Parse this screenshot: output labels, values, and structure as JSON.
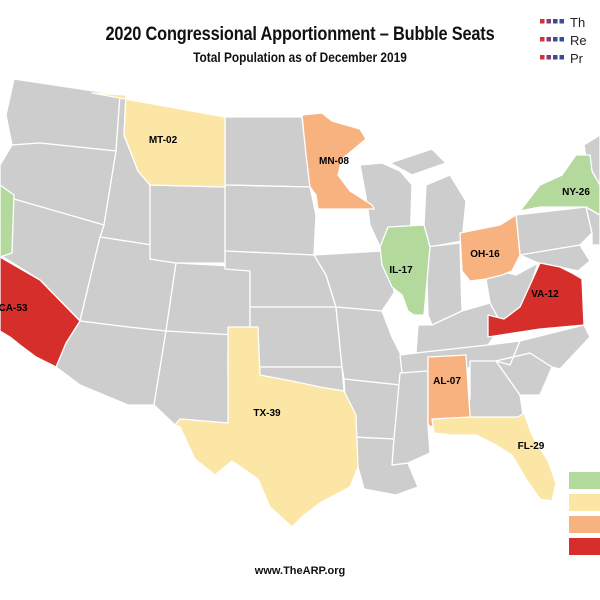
{
  "header": {
    "title": "2020 Congressional Apportionment – Bubble Seats",
    "subtitle": "Total Population as of December 2019"
  },
  "logo": {
    "lines": [
      "Th",
      "Re",
      "Pr"
    ],
    "dot_colors": [
      "#d62f36",
      "#8a3a78",
      "#3d4a9a"
    ]
  },
  "footer": {
    "url": "www.TheARP.org"
  },
  "colors": {
    "base": "#cdcdcd",
    "green": "#b3da9c",
    "yellow": "#fbe6a6",
    "orange": "#f7b280",
    "red": "#d62f2b",
    "border": "#ffffff"
  },
  "legend": [
    {
      "color": "#b3da9c"
    },
    {
      "color": "#fbe6a6"
    },
    {
      "color": "#f7b280"
    },
    {
      "color": "#d62f2b"
    }
  ],
  "states": [
    {
      "id": "MT",
      "label": "MT-02",
      "category": "yellow"
    },
    {
      "id": "MN",
      "label": "MN-08",
      "category": "orange"
    },
    {
      "id": "NY",
      "label": "NY-26",
      "category": "green"
    },
    {
      "id": "IL",
      "label": "IL-17",
      "category": "green"
    },
    {
      "id": "OH",
      "label": "OH-16",
      "category": "orange"
    },
    {
      "id": "VA",
      "label": "VA-12",
      "category": "red"
    },
    {
      "id": "CA",
      "label": "CA-53",
      "category": "red"
    },
    {
      "id": "TX",
      "label": "TX-39",
      "category": "yellow"
    },
    {
      "id": "AL",
      "label": "AL-07",
      "category": "orange"
    },
    {
      "id": "FL",
      "label": "FL-29",
      "category": "yellow"
    },
    {
      "id": "OR",
      "label": "",
      "category": "green"
    }
  ]
}
